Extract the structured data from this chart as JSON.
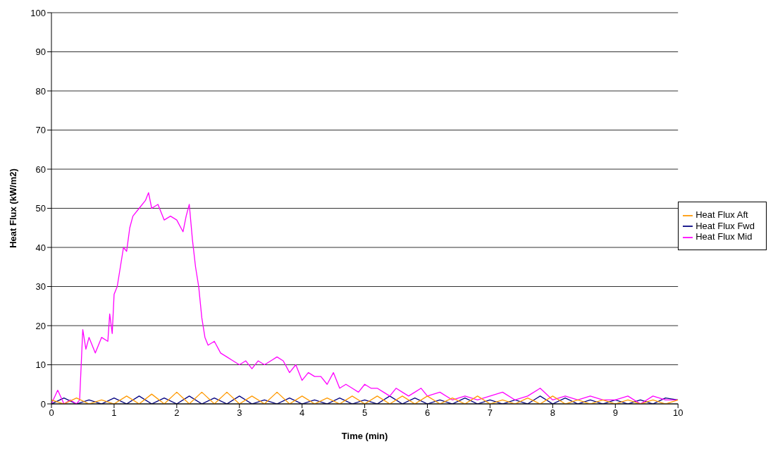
{
  "chart_data": {
    "type": "line",
    "xlabel": "Time (min)",
    "ylabel": "Heat Flux (kW/m2)",
    "xlim": [
      0,
      10
    ],
    "ylim": [
      0,
      100
    ],
    "xticks": [
      0,
      1,
      2,
      3,
      4,
      5,
      6,
      7,
      8,
      9,
      10
    ],
    "yticks": [
      0,
      10,
      20,
      30,
      40,
      50,
      60,
      70,
      80,
      90,
      100
    ],
    "grid": "y",
    "legend": "right",
    "marker": "none",
    "line_style": "solid",
    "series": [
      {
        "name": "Heat Flux Fwd",
        "color": "#000080",
        "x": [
          0,
          0.2,
          0.4,
          0.6,
          0.8,
          1,
          1.2,
          1.4,
          1.6,
          1.8,
          2,
          2.2,
          2.4,
          2.6,
          2.8,
          3,
          3.2,
          3.4,
          3.6,
          3.8,
          4,
          4.2,
          4.4,
          4.6,
          4.8,
          5,
          5.2,
          5.4,
          5.6,
          5.8,
          6,
          6.2,
          6.4,
          6.6,
          6.8,
          7,
          7.2,
          7.4,
          7.6,
          7.8,
          8,
          8.2,
          8.4,
          8.6,
          8.8,
          9,
          9.2,
          9.4,
          9.6,
          9.8,
          10
        ],
        "values": [
          0,
          1.5,
          0,
          1,
          0,
          1.5,
          0,
          2,
          0,
          1.5,
          0,
          2,
          0,
          1.5,
          0,
          2,
          0,
          1,
          0,
          1.5,
          0,
          1,
          0,
          1.5,
          0,
          1,
          0,
          2,
          0,
          1.5,
          0,
          1,
          0,
          1.5,
          0,
          1,
          0,
          1,
          0,
          2,
          0,
          1.5,
          0,
          1,
          0,
          1,
          0,
          1,
          0,
          1.5,
          1
        ]
      },
      {
        "name": "Heat Flux Mid",
        "color": "#ff00ff",
        "x": [
          0,
          0.1,
          0.2,
          0.3,
          0.4,
          0.45,
          0.5,
          0.55,
          0.6,
          0.7,
          0.8,
          0.9,
          0.93,
          0.97,
          1,
          1.05,
          1.1,
          1.15,
          1.2,
          1.25,
          1.3,
          1.4,
          1.5,
          1.55,
          1.6,
          1.7,
          1.8,
          1.9,
          2,
          2.1,
          2.15,
          2.2,
          2.25,
          2.3,
          2.35,
          2.4,
          2.45,
          2.5,
          2.6,
          2.7,
          2.8,
          2.9,
          3,
          3.1,
          3.2,
          3.3,
          3.4,
          3.5,
          3.6,
          3.7,
          3.8,
          3.9,
          4,
          4.1,
          4.2,
          4.3,
          4.4,
          4.5,
          4.6,
          4.7,
          4.8,
          4.9,
          5,
          5.1,
          5.2,
          5.3,
          5.4,
          5.5,
          5.6,
          5.7,
          5.8,
          5.9,
          6,
          6.2,
          6.4,
          6.6,
          6.8,
          7,
          7.2,
          7.4,
          7.6,
          7.8,
          8,
          8.2,
          8.4,
          8.6,
          8.8,
          9,
          9.2,
          9.4,
          9.6,
          9.8,
          10
        ],
        "values": [
          0,
          3.5,
          0,
          1,
          0,
          1,
          19,
          14,
          17,
          13,
          17,
          16,
          23,
          18,
          28,
          30,
          35,
          40,
          39,
          45,
          48,
          50,
          52,
          54,
          50,
          51,
          47,
          48,
          47,
          44,
          48,
          51,
          42,
          35,
          30,
          22,
          17,
          15,
          16,
          13,
          12,
          11,
          10,
          11,
          9,
          11,
          10,
          11,
          12,
          11,
          8,
          10,
          6,
          8,
          7,
          7,
          5,
          8,
          4,
          5,
          4,
          3,
          5,
          4,
          4,
          3,
          2,
          4,
          3,
          2,
          3,
          4,
          2,
          3,
          1,
          2,
          1,
          2,
          3,
          1,
          2,
          4,
          1,
          2,
          1,
          2,
          1,
          1,
          2,
          0,
          2,
          1,
          1
        ]
      },
      {
        "name": "Heat Flux Aft",
        "color": "#ff9900",
        "x": [
          0,
          0.2,
          0.4,
          0.6,
          0.8,
          1,
          1.2,
          1.4,
          1.6,
          1.8,
          2,
          2.2,
          2.4,
          2.6,
          2.8,
          3,
          3.2,
          3.4,
          3.6,
          3.8,
          4,
          4.2,
          4.4,
          4.6,
          4.8,
          5,
          5.2,
          5.4,
          5.6,
          5.8,
          6,
          6.2,
          6.4,
          6.6,
          6.8,
          7,
          7.2,
          7.4,
          7.6,
          7.8,
          8,
          8.2,
          8.4,
          8.6,
          8.8,
          9,
          9.2,
          9.4,
          9.6,
          9.8,
          10
        ],
        "values": [
          1,
          0,
          1.5,
          0,
          1,
          0,
          2,
          0,
          2.5,
          0,
          3,
          0,
          3,
          0,
          3,
          0,
          2,
          0,
          3,
          0,
          2,
          0,
          1.5,
          0,
          2,
          0,
          2,
          0,
          2,
          0,
          2,
          0,
          1.5,
          0,
          2,
          0,
          1,
          0,
          1.5,
          0,
          2,
          0,
          1,
          0,
          1,
          0,
          1,
          0,
          1,
          0,
          1
        ]
      }
    ]
  }
}
